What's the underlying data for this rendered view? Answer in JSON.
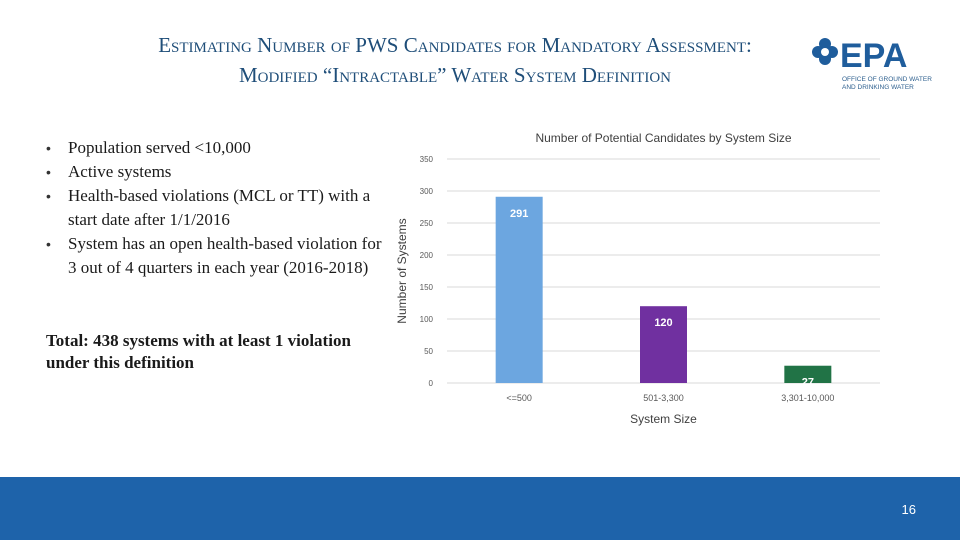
{
  "slide": {
    "title_line1": "Estimating Number of PWS Candidates for Mandatory Assessment:",
    "title_line2": "Modified “Intractable” Water System Definition",
    "page_number": "16",
    "footer_color": "#1e63aa"
  },
  "logo": {
    "text": "EPA",
    "subtext_line1": "Office of Ground Water",
    "subtext_line2": "and Drinking Water",
    "icon": "epa-flower-icon"
  },
  "bullets": [
    "Population served <10,000",
    "Active systems",
    "Health-based violations (MCL or TT) with a start date after 1/1/2016",
    "System has an open health-based violation for 3 out of 4 quarters in each year (2016-2018)"
  ],
  "total_text": "Total: 438 systems with at least 1 violation under this definition",
  "chart_data": {
    "type": "bar",
    "title": "Number of Potential Candidates by System Size",
    "xlabel": "System Size",
    "ylabel": "Number of Systems",
    "categories": [
      "<=500",
      "501-3,300",
      "3,301-10,000"
    ],
    "values": [
      291,
      120,
      27
    ],
    "colors": [
      "#6ca6e0",
      "#7030a0",
      "#217346"
    ],
    "ylim": [
      0,
      350
    ],
    "yticks": [
      0,
      50,
      100,
      150,
      200,
      250,
      300,
      350
    ],
    "grid": true,
    "legend": "none"
  }
}
